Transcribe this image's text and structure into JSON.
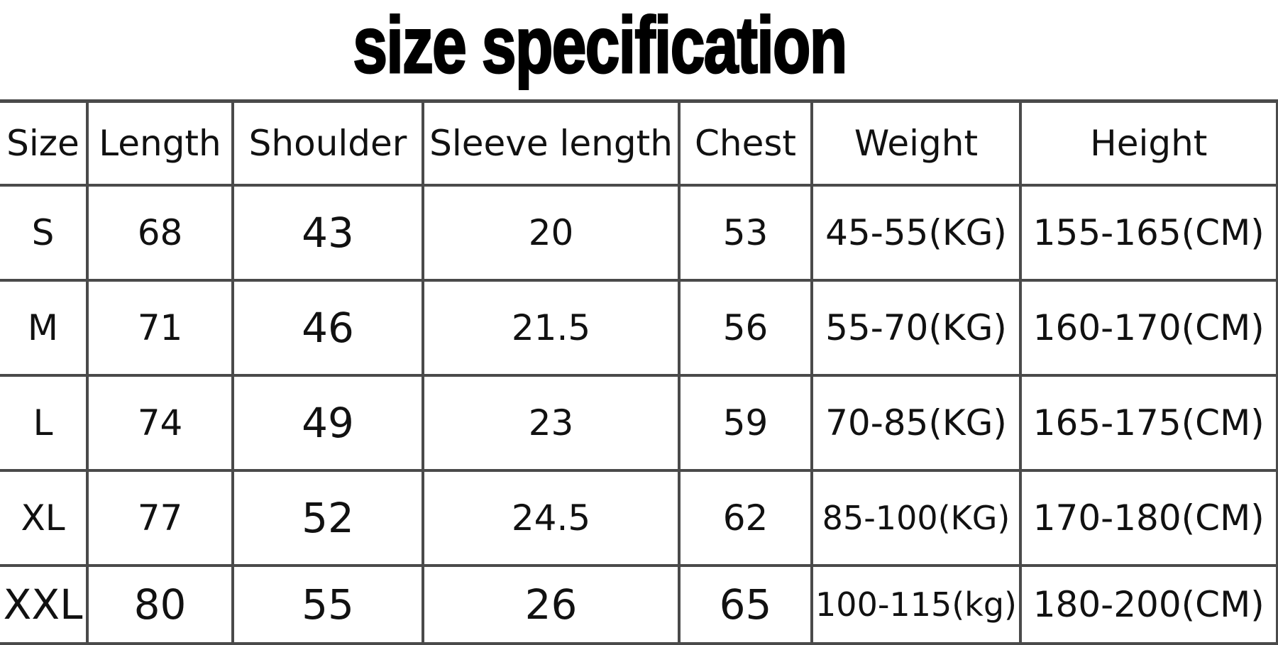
{
  "title": "size specification",
  "table": {
    "headers": [
      "Size",
      "Length",
      "Shoulder",
      "Sleeve length",
      "Chest",
      "Weight",
      "Height"
    ],
    "rows": [
      [
        "S",
        "68",
        "43",
        "20",
        "53",
        "45-55(KG)",
        "155-165(CM)"
      ],
      [
        "M",
        "71",
        "46",
        "21.5",
        "56",
        "55-70(KG)",
        "160-170(CM)"
      ],
      [
        "L",
        "74",
        "49",
        "23",
        "59",
        "70-85(KG)",
        "165-175(CM)"
      ],
      [
        "XL",
        "77",
        "52",
        "24.5",
        "62",
        "85-100(KG)",
        "170-180(CM)"
      ],
      [
        "XXL",
        "80",
        "55",
        "26",
        "65",
        "100-115(kg)",
        "180-200(CM)"
      ]
    ]
  }
}
